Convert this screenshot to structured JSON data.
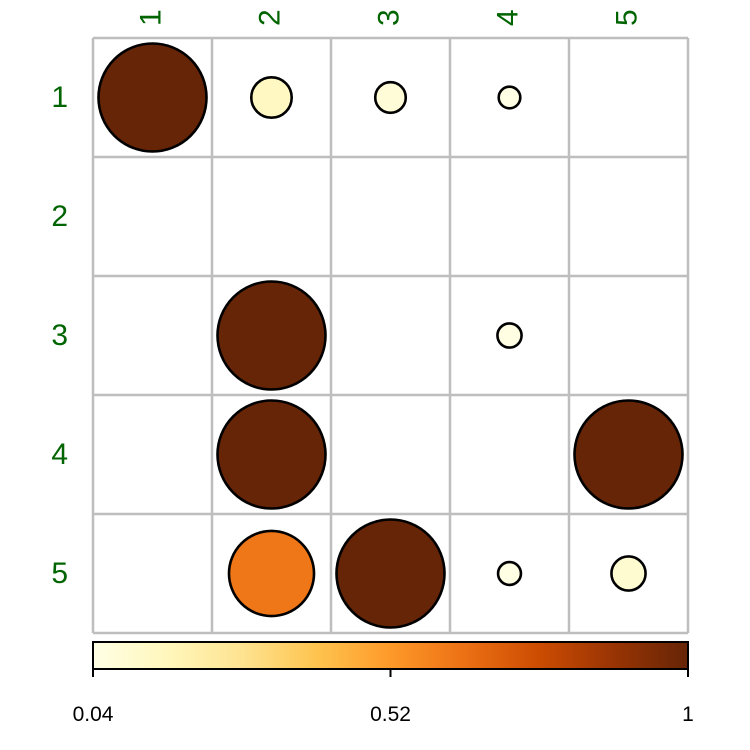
{
  "chart_data": {
    "type": "heatmap",
    "title": "",
    "rows": [
      "1",
      "2",
      "3",
      "4",
      "5"
    ],
    "columns": [
      "1",
      "2",
      "3",
      "4",
      "5"
    ],
    "label_color": "#006400",
    "grid_color": "#bebebe",
    "cells": [
      {
        "row": "1",
        "col": "1",
        "value": 1.0
      },
      {
        "row": "1",
        "col": "2",
        "value": 0.14
      },
      {
        "row": "1",
        "col": "3",
        "value": 0.08
      },
      {
        "row": "1",
        "col": "4",
        "value": 0.04
      },
      {
        "row": "3",
        "col": "2",
        "value": 1.0
      },
      {
        "row": "3",
        "col": "4",
        "value": 0.05
      },
      {
        "row": "4",
        "col": "2",
        "value": 1.0
      },
      {
        "row": "4",
        "col": "5",
        "value": 1.0
      },
      {
        "row": "5",
        "col": "2",
        "value": 0.62
      },
      {
        "row": "5",
        "col": "3",
        "value": 1.0
      },
      {
        "row": "5",
        "col": "4",
        "value": 0.045
      },
      {
        "row": "5",
        "col": "5",
        "value": 0.1
      }
    ],
    "colorbar": {
      "min": 0.04,
      "max": 1,
      "ticks": [
        {
          "value": 0.04,
          "label": "0.04"
        },
        {
          "value": 0.52,
          "label": "0.52"
        },
        {
          "value": 1,
          "label": "1"
        }
      ],
      "stops": [
        "#ffffe5",
        "#fff7bc",
        "#fee391",
        "#fec44f",
        "#fe9929",
        "#ec7014",
        "#cc4c02",
        "#993404",
        "#662506"
      ]
    }
  }
}
